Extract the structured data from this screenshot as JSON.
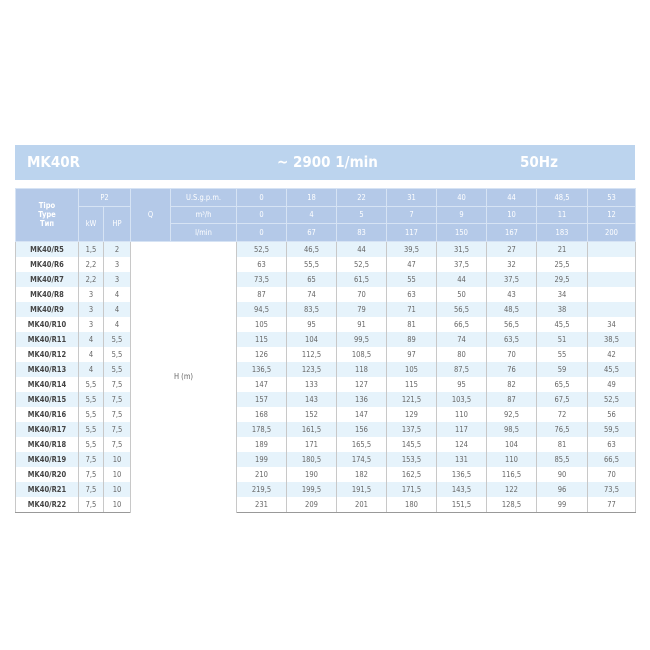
{
  "title": {
    "model": "MK40R",
    "speed": "~ 2900 1/min",
    "frequency": "50Hz"
  },
  "header": {
    "type_label": "Tipo\nType\nТип",
    "p2": "P2",
    "kw": "kW",
    "hp": "HP",
    "q": "Q",
    "units": [
      "U.S.g.p.m.",
      "m³/h",
      "l/min"
    ],
    "usgpm": [
      "0",
      "18",
      "22",
      "31",
      "40",
      "44",
      "48,5",
      "53"
    ],
    "m3h": [
      "0",
      "4",
      "5",
      "7",
      "9",
      "10",
      "11",
      "12"
    ],
    "lmin": [
      "0",
      "67",
      "83",
      "117",
      "150",
      "167",
      "183",
      "200"
    ]
  },
  "h_label": "H (m)",
  "colors": {
    "title_bg": "#bcd4ee",
    "header_bg": "#b4c9e8",
    "alt_row": "#e6f3fb"
  },
  "rows": [
    {
      "type": "MK40/R5",
      "kw": "1,5",
      "hp": "2",
      "h": [
        "52,5",
        "46,5",
        "44",
        "39,5",
        "31,5",
        "27",
        "21",
        ""
      ]
    },
    {
      "type": "MK40/R6",
      "kw": "2,2",
      "hp": "3",
      "h": [
        "63",
        "55,5",
        "52,5",
        "47",
        "37,5",
        "32",
        "25,5",
        ""
      ]
    },
    {
      "type": "MK40/R7",
      "kw": "2,2",
      "hp": "3",
      "h": [
        "73,5",
        "65",
        "61,5",
        "55",
        "44",
        "37,5",
        "29,5",
        ""
      ]
    },
    {
      "type": "MK40/R8",
      "kw": "3",
      "hp": "4",
      "h": [
        "87",
        "74",
        "70",
        "63",
        "50",
        "43",
        "34",
        ""
      ]
    },
    {
      "type": "MK40/R9",
      "kw": "3",
      "hp": "4",
      "h": [
        "94,5",
        "83,5",
        "79",
        "71",
        "56,5",
        "48,5",
        "38",
        ""
      ]
    },
    {
      "type": "MK40/R10",
      "kw": "3",
      "hp": "4",
      "h": [
        "105",
        "95",
        "91",
        "81",
        "66,5",
        "56,5",
        "45,5",
        "34"
      ]
    },
    {
      "type": "MK40/R11",
      "kw": "4",
      "hp": "5,5",
      "h": [
        "115",
        "104",
        "99,5",
        "89",
        "74",
        "63,5",
        "51",
        "38,5"
      ]
    },
    {
      "type": "MK40/R12",
      "kw": "4",
      "hp": "5,5",
      "h": [
        "126",
        "112,5",
        "108,5",
        "97",
        "80",
        "70",
        "55",
        "42"
      ]
    },
    {
      "type": "MK40/R13",
      "kw": "4",
      "hp": "5,5",
      "h": [
        "136,5",
        "123,5",
        "118",
        "105",
        "87,5",
        "76",
        "59",
        "45,5"
      ]
    },
    {
      "type": "MK40/R14",
      "kw": "5,5",
      "hp": "7,5",
      "h": [
        "147",
        "133",
        "127",
        "115",
        "95",
        "82",
        "65,5",
        "49"
      ]
    },
    {
      "type": "MK40/R15",
      "kw": "5,5",
      "hp": "7,5",
      "h": [
        "157",
        "143",
        "136",
        "121,5",
        "103,5",
        "87",
        "67,5",
        "52,5"
      ]
    },
    {
      "type": "MK40/R16",
      "kw": "5,5",
      "hp": "7,5",
      "h": [
        "168",
        "152",
        "147",
        "129",
        "110",
        "92,5",
        "72",
        "56"
      ]
    },
    {
      "type": "MK40/R17",
      "kw": "5,5",
      "hp": "7,5",
      "h": [
        "178,5",
        "161,5",
        "156",
        "137,5",
        "117",
        "98,5",
        "76,5",
        "59,5"
      ]
    },
    {
      "type": "MK40/R18",
      "kw": "5,5",
      "hp": "7,5",
      "h": [
        "189",
        "171",
        "165,5",
        "145,5",
        "124",
        "104",
        "81",
        "63"
      ]
    },
    {
      "type": "MK40/R19",
      "kw": "7,5",
      "hp": "10",
      "h": [
        "199",
        "180,5",
        "174,5",
        "153,5",
        "131",
        "110",
        "85,5",
        "66,5"
      ]
    },
    {
      "type": "MK40/R20",
      "kw": "7,5",
      "hp": "10",
      "h": [
        "210",
        "190",
        "182",
        "162,5",
        "136,5",
        "116,5",
        "90",
        "70"
      ]
    },
    {
      "type": "MK40/R21",
      "kw": "7,5",
      "hp": "10",
      "h": [
        "219,5",
        "199,5",
        "191,5",
        "171,5",
        "143,5",
        "122",
        "96",
        "73,5"
      ]
    },
    {
      "type": "MK40/R22",
      "kw": "7,5",
      "hp": "10",
      "h": [
        "231",
        "209",
        "201",
        "180",
        "151,5",
        "128,5",
        "99",
        "77"
      ]
    }
  ]
}
